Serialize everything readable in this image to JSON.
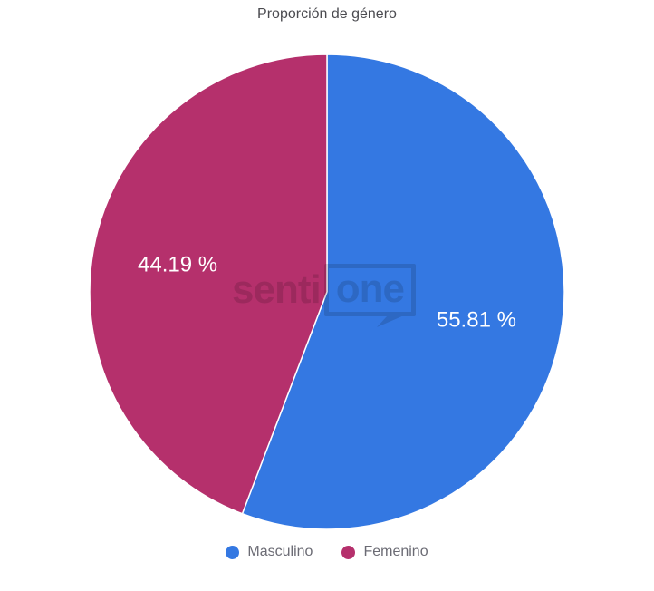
{
  "title": "Proporción de género",
  "watermark": {
    "prefix": "senti",
    "suffix": "one"
  },
  "chart_data": {
    "type": "pie",
    "title": "Proporción de género",
    "labels": [
      "Masculino",
      "Femenino"
    ],
    "values": [
      55.81,
      44.19
    ],
    "unit": "%",
    "slice_labels": [
      "55.81 %",
      "44.19 %"
    ],
    "colors": [
      "#3478E2",
      "#B5306C"
    ],
    "slice_label_color": "#ffffff",
    "start_angle_deg": 0,
    "direction": "clockwise",
    "legend_position": "bottom"
  },
  "legend": {
    "items": [
      {
        "label": "Masculino",
        "color": "#3478E2"
      },
      {
        "label": "Femenino",
        "color": "#B5306C"
      }
    ]
  }
}
